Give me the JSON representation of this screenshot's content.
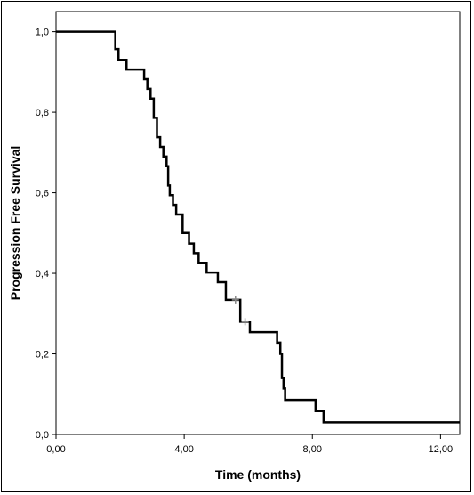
{
  "chart_data": {
    "type": "line",
    "title": "",
    "xlabel": "Time (months)",
    "ylabel": "Progression Free  Survival",
    "xlim": [
      0,
      12.6
    ],
    "ylim": [
      0,
      1.05
    ],
    "x_ticks": [
      0,
      4,
      8,
      12
    ],
    "x_tick_labels": [
      "0,00",
      "4,00",
      "8,00",
      "12,00"
    ],
    "y_ticks": [
      0,
      0.2,
      0.4,
      0.6,
      0.8,
      1.0
    ],
    "y_tick_labels": [
      "0,0",
      "0,2",
      "0,4",
      "0,6",
      "0,8",
      "1,0"
    ],
    "grid": false,
    "legend": "none",
    "line_color": "#000000",
    "censor_color": "#888888",
    "series": [
      {
        "steps": [
          [
            0.0,
            1.0
          ],
          [
            1.85,
            0.957
          ],
          [
            1.95,
            0.93
          ],
          [
            2.2,
            0.906
          ],
          [
            2.75,
            0.882
          ],
          [
            2.85,
            0.858
          ],
          [
            2.95,
            0.834
          ],
          [
            3.05,
            0.786
          ],
          [
            3.15,
            0.738
          ],
          [
            3.25,
            0.714
          ],
          [
            3.35,
            0.69
          ],
          [
            3.45,
            0.666
          ],
          [
            3.5,
            0.618
          ],
          [
            3.55,
            0.594
          ],
          [
            3.65,
            0.57
          ],
          [
            3.75,
            0.546
          ],
          [
            3.95,
            0.5
          ],
          [
            4.15,
            0.474
          ],
          [
            4.3,
            0.45
          ],
          [
            4.45,
            0.426
          ],
          [
            4.7,
            0.402
          ],
          [
            5.05,
            0.378
          ],
          [
            5.3,
            0.334
          ],
          [
            5.75,
            0.28
          ],
          [
            6.05,
            0.254
          ],
          [
            6.9,
            0.228
          ],
          [
            7.0,
            0.2
          ],
          [
            7.05,
            0.14
          ],
          [
            7.1,
            0.114
          ],
          [
            7.15,
            0.086
          ],
          [
            8.1,
            0.058
          ],
          [
            8.35,
            0.03
          ],
          [
            12.6,
            0.03
          ]
        ],
        "censored": [
          [
            5.6,
            0.334
          ],
          [
            5.9,
            0.28
          ]
        ]
      }
    ]
  }
}
